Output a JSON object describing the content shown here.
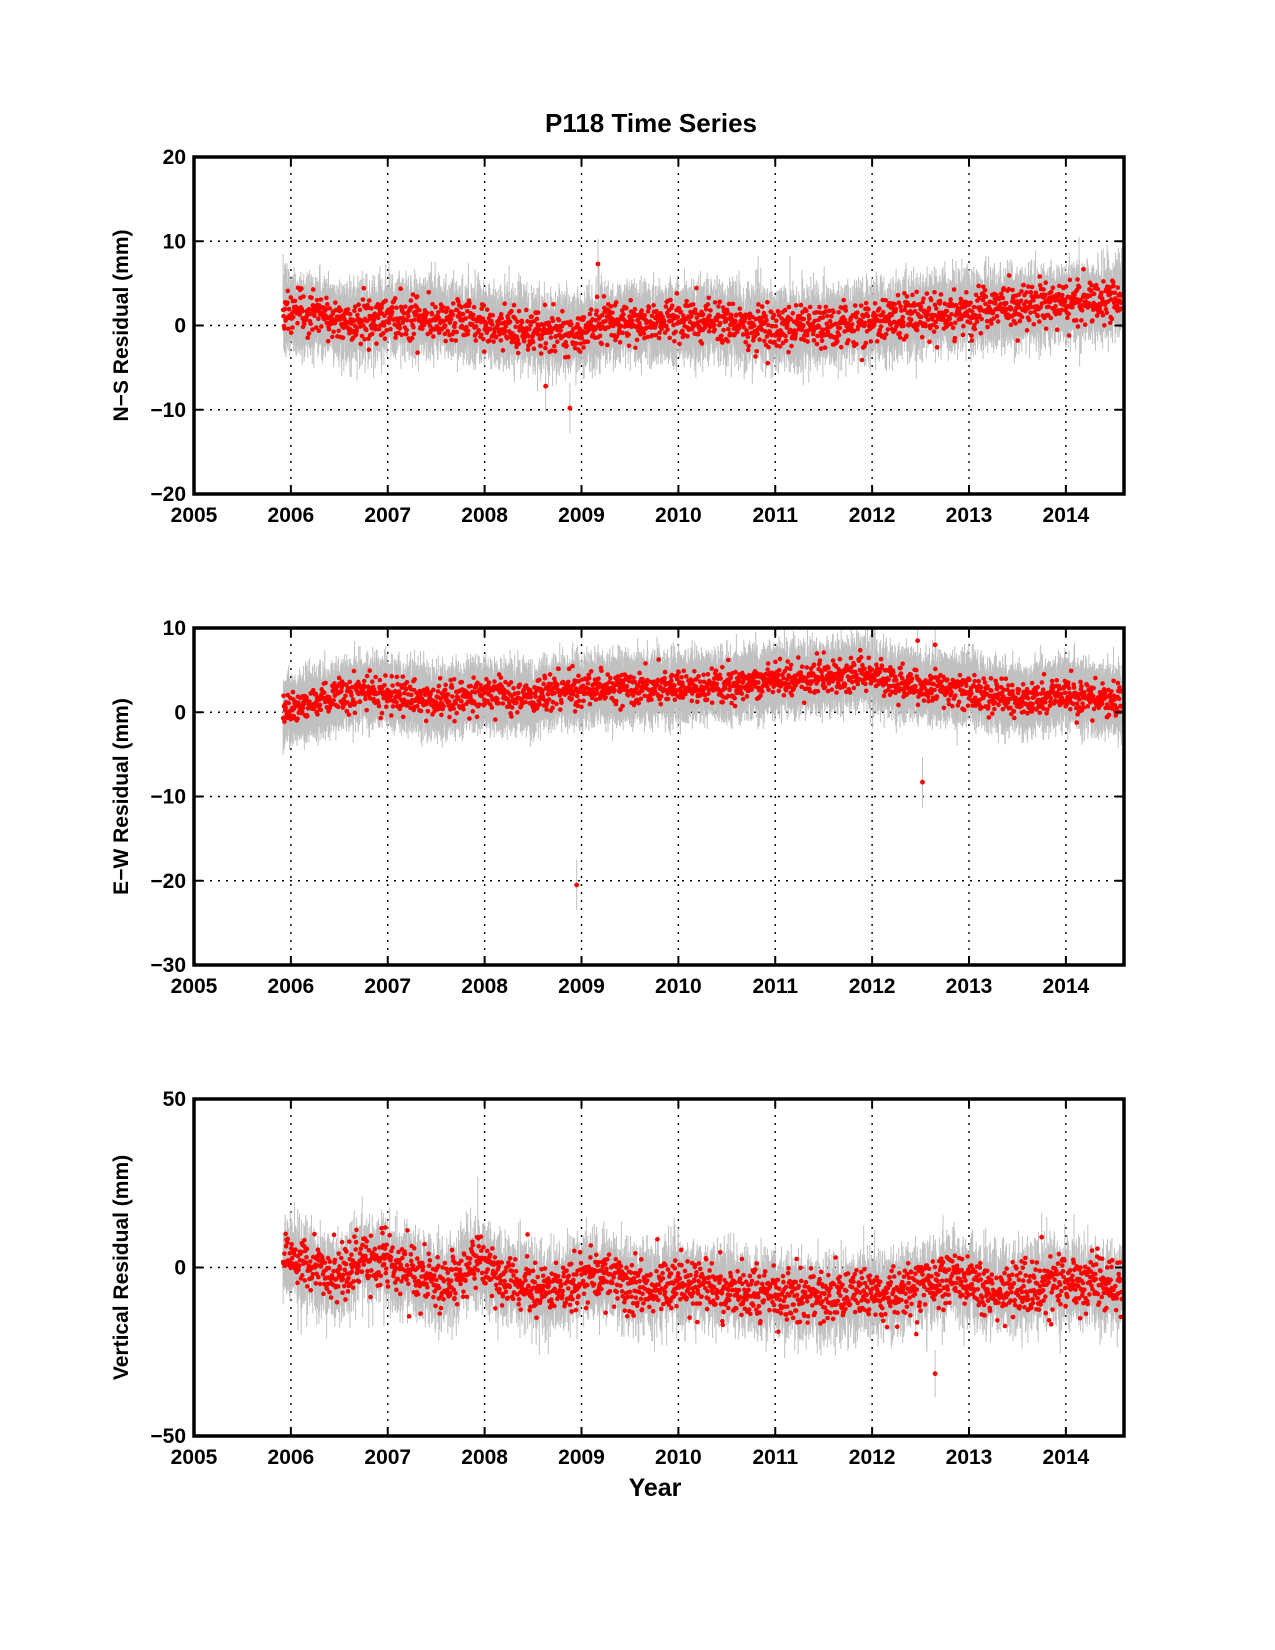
{
  "figure": {
    "title": "P118 Time Series",
    "xlabel": "Year"
  },
  "style": {
    "point_color": "#ff0000",
    "errorbar_color": "#c0c0c0",
    "grid": "dotted"
  },
  "chart_data": [
    {
      "type": "scatter",
      "name": "N-S",
      "ylabel": "N−S Residual (mm)",
      "xlim": [
        2005,
        2014.6
      ],
      "ylim": [
        -20,
        20
      ],
      "xticks": [
        2005,
        2006,
        2007,
        2008,
        2009,
        2010,
        2011,
        2012,
        2013,
        2014
      ],
      "yticks": [
        -20,
        -10,
        0,
        10,
        20
      ],
      "x_range_data": [
        2005.92,
        2014.58
      ],
      "grid": true,
      "trend": [
        [
          2005.92,
          1.8
        ],
        [
          2006.3,
          1.2
        ],
        [
          2006.6,
          0.2
        ],
        [
          2007.0,
          1.2
        ],
        [
          2007.6,
          0.8
        ],
        [
          2008.0,
          0.0
        ],
        [
          2008.4,
          -0.5
        ],
        [
          2008.9,
          -1.0
        ],
        [
          2009.2,
          0.3
        ],
        [
          2009.6,
          0.5
        ],
        [
          2010.0,
          0.6
        ],
        [
          2010.5,
          0.3
        ],
        [
          2011.0,
          -0.4
        ],
        [
          2011.5,
          -0.3
        ],
        [
          2012.0,
          0.5
        ],
        [
          2012.5,
          1.2
        ],
        [
          2013.0,
          1.8
        ],
        [
          2013.5,
          2.3
        ],
        [
          2014.0,
          2.6
        ],
        [
          2014.58,
          3.2
        ]
      ],
      "scatter_sd": 1.3,
      "errorbar_halfwidth": 3.0,
      "outliers": [
        [
          2009.17,
          7.3
        ],
        [
          2008.88,
          -9.8
        ],
        [
          2008.63,
          -7.2
        ]
      ]
    },
    {
      "type": "scatter",
      "name": "E-W",
      "ylabel": "E−W Residual (mm)",
      "xlim": [
        2005,
        2014.6
      ],
      "ylim": [
        -30,
        10
      ],
      "xticks": [
        2005,
        2006,
        2007,
        2008,
        2009,
        2010,
        2011,
        2012,
        2013,
        2014
      ],
      "yticks": [
        -30,
        -20,
        -10,
        0,
        10
      ],
      "x_range_data": [
        2005.92,
        2014.58
      ],
      "grid": true,
      "trend": [
        [
          2005.92,
          0.3
        ],
        [
          2006.4,
          1.5
        ],
        [
          2006.7,
          2.5
        ],
        [
          2007.0,
          2.2
        ],
        [
          2007.5,
          1.2
        ],
        [
          2008.0,
          2.2
        ],
        [
          2008.4,
          1.5
        ],
        [
          2008.8,
          2.5
        ],
        [
          2009.2,
          2.8
        ],
        [
          2009.6,
          3.0
        ],
        [
          2010.0,
          3.0
        ],
        [
          2010.5,
          3.2
        ],
        [
          2011.0,
          3.8
        ],
        [
          2011.5,
          4.2
        ],
        [
          2011.9,
          4.8
        ],
        [
          2012.2,
          3.5
        ],
        [
          2012.8,
          3.0
        ],
        [
          2013.2,
          2.0
        ],
        [
          2013.6,
          1.5
        ],
        [
          2014.0,
          2.3
        ],
        [
          2014.58,
          1.2
        ]
      ],
      "scatter_sd": 1.0,
      "errorbar_halfwidth": 3.0,
      "outliers": [
        [
          2008.95,
          -20.5
        ],
        [
          2012.52,
          -8.3
        ],
        [
          2012.47,
          8.5
        ],
        [
          2012.65,
          8.0
        ]
      ]
    },
    {
      "type": "scatter",
      "name": "Vertical",
      "ylabel": "Vertical Residual (mm)",
      "xlim": [
        2005,
        2014.6
      ],
      "ylim": [
        -50,
        50
      ],
      "xticks": [
        2005,
        2006,
        2007,
        2008,
        2009,
        2010,
        2011,
        2012,
        2013,
        2014
      ],
      "yticks": [
        -50,
        0,
        50
      ],
      "x_range_data": [
        2005.92,
        2014.58
      ],
      "grid": true,
      "trend": [
        [
          2005.92,
          4.0
        ],
        [
          2006.2,
          0.0
        ],
        [
          2006.5,
          -3.0
        ],
        [
          2006.7,
          2.0
        ],
        [
          2007.0,
          2.0
        ],
        [
          2007.3,
          -3.0
        ],
        [
          2007.6,
          -5.0
        ],
        [
          2007.9,
          2.0
        ],
        [
          2008.2,
          -4.0
        ],
        [
          2008.6,
          -7.0
        ],
        [
          2009.0,
          -3.0
        ],
        [
          2009.3,
          -3.0
        ],
        [
          2009.6,
          -7.0
        ],
        [
          2010.0,
          -4.0
        ],
        [
          2010.5,
          -6.0
        ],
        [
          2011.0,
          -8.0
        ],
        [
          2011.5,
          -9.0
        ],
        [
          2012.0,
          -8.0
        ],
        [
          2012.5,
          -6.0
        ],
        [
          2012.8,
          -3.0
        ],
        [
          2013.2,
          -6.0
        ],
        [
          2013.6,
          -6.0
        ],
        [
          2014.0,
          -4.0
        ],
        [
          2014.58,
          -6.0
        ]
      ],
      "scatter_sd": 4.0,
      "errorbar_halfwidth": 7.0,
      "outliers": [
        [
          2012.65,
          -31.5
        ],
        [
          2013.75,
          9.0
        ]
      ]
    }
  ]
}
